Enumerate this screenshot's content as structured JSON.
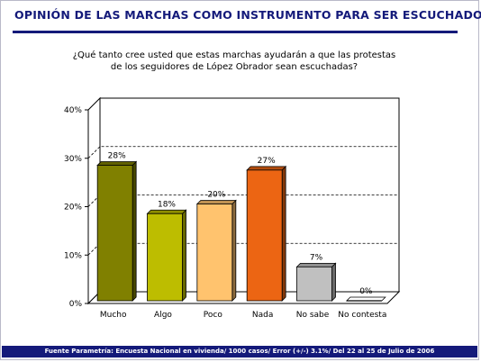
{
  "title": "OPINIÓN DE LAS MARCHAS COMO INSTRUMENTO PARA SER ESCUCHADO",
  "question_line1": "¿Qué tanto cree usted que estas marchas ayudarán a que las protestas",
  "question_line2": "de los seguidores de López Obrador sean escuchadas?",
  "footer": "Fuente Parametría: Encuesta Nacional en vivienda/ 1000 casos/ Error (+/-) 3.1%/ Del 22 al 25 de Julio de 2006",
  "chart_data": {
    "type": "bar",
    "categories": [
      "Mucho",
      "Algo",
      "Poco",
      "Nada",
      "No sabe",
      "No contesta"
    ],
    "values": [
      28,
      18,
      20,
      27,
      7,
      0
    ],
    "data_labels": [
      "28%",
      "18%",
      "20%",
      "27%",
      "7%",
      "0%"
    ],
    "colors": [
      "#808000",
      "#bdbd00",
      "#ffc36e",
      "#ec6513",
      "#c0c0c0",
      "#ffffff"
    ],
    "yticks": [
      "0%",
      "10%",
      "20%",
      "30%",
      "40%"
    ],
    "ylim": [
      0,
      40
    ],
    "grid": "dashed horizontal",
    "style": "3d"
  }
}
